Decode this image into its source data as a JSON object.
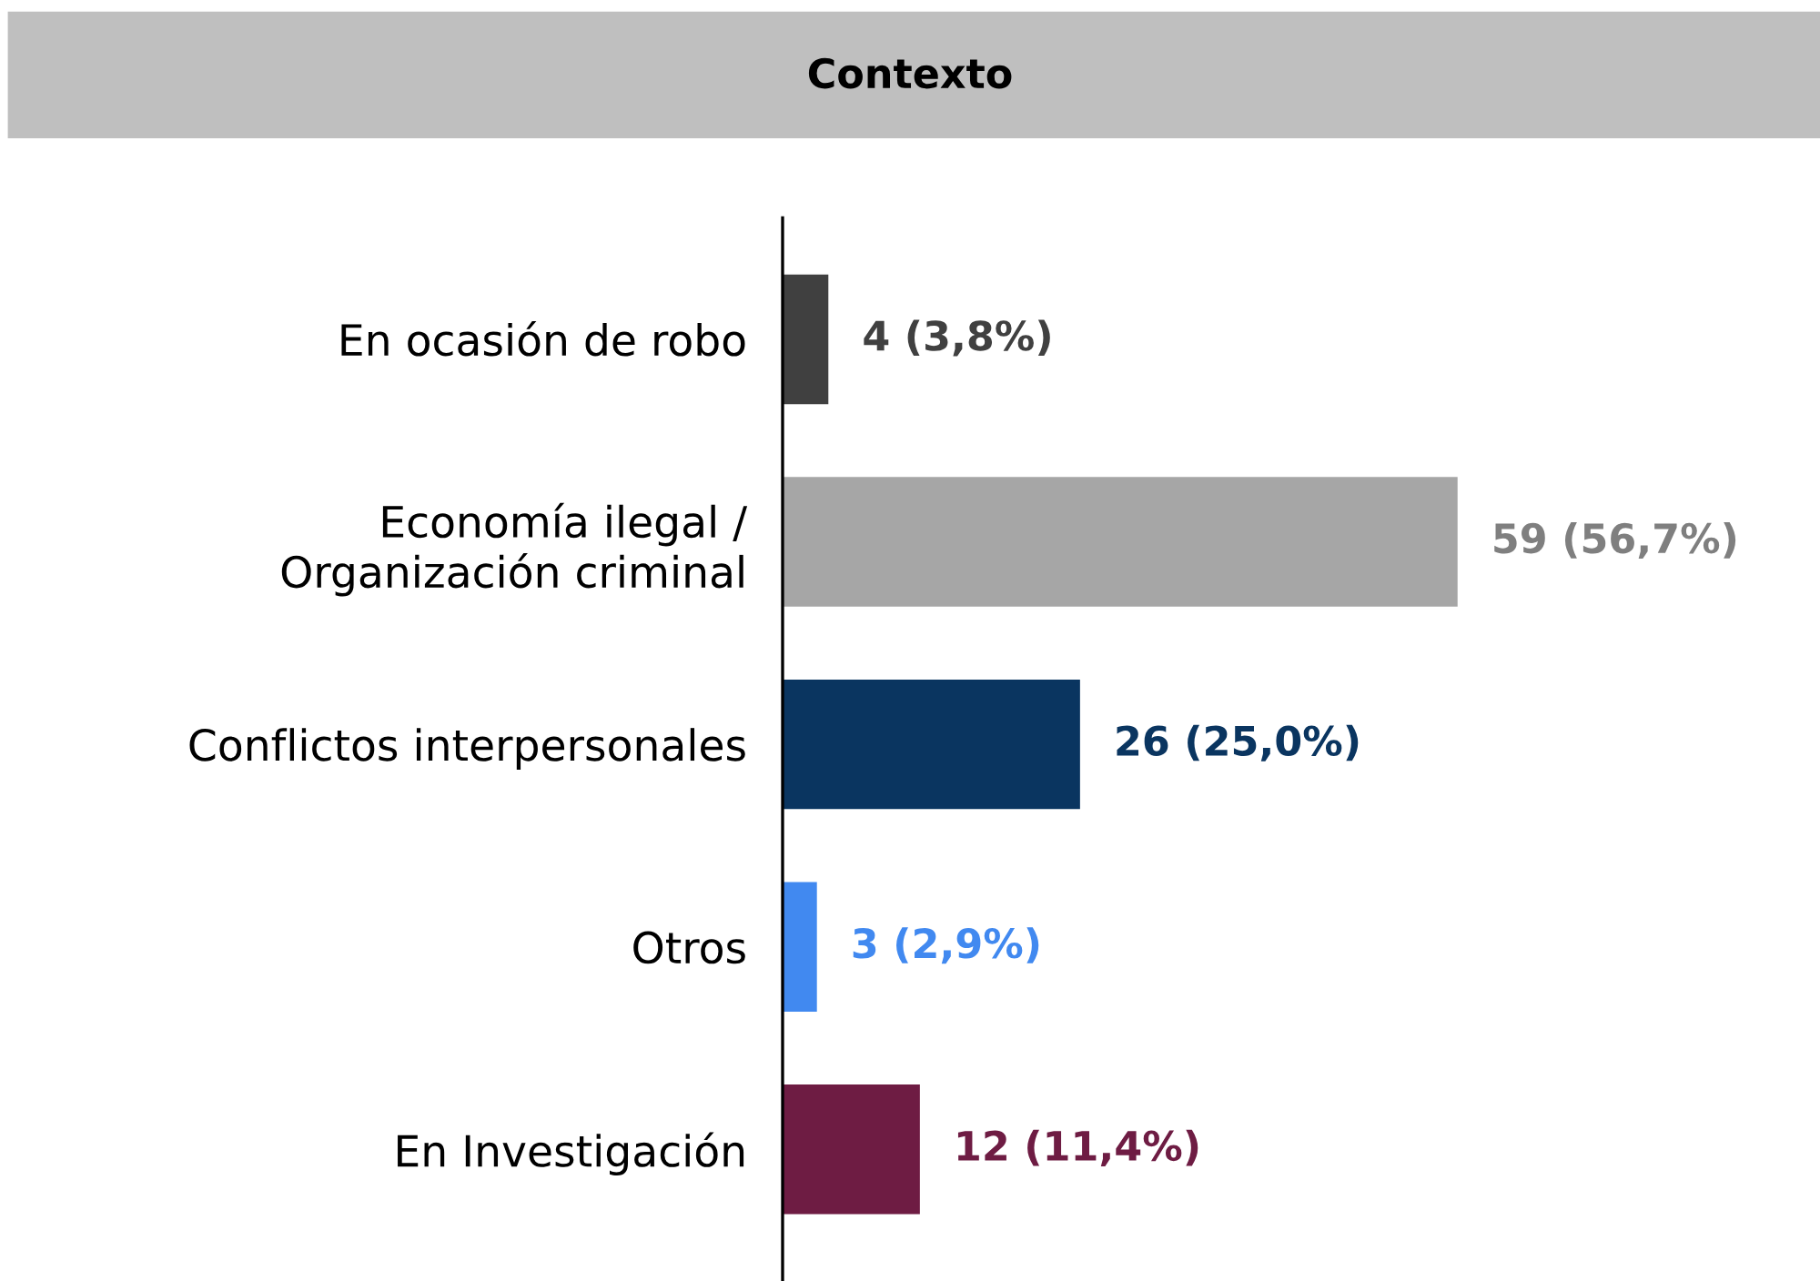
{
  "chart_data": {
    "type": "bar",
    "orientation": "horizontal",
    "title": "Contexto",
    "categories": [
      "En ocasión de robo",
      "Economía ilegal /\nOrganización criminal",
      "Conflictos interpersonales",
      "Otros",
      "En Investigación"
    ],
    "values": [
      4,
      59,
      26,
      3,
      12
    ],
    "colors": [
      "#404040",
      "#a6a6a6",
      "#0a3560",
      "#4189f0",
      "#6e1c43"
    ],
    "value_labels": [
      "4 (3,8%)",
      "59 (56,7%)",
      "26 (25,0%)",
      "3 (2,9%)",
      "12 (11,4%)"
    ],
    "grid": false,
    "legend": false
  }
}
